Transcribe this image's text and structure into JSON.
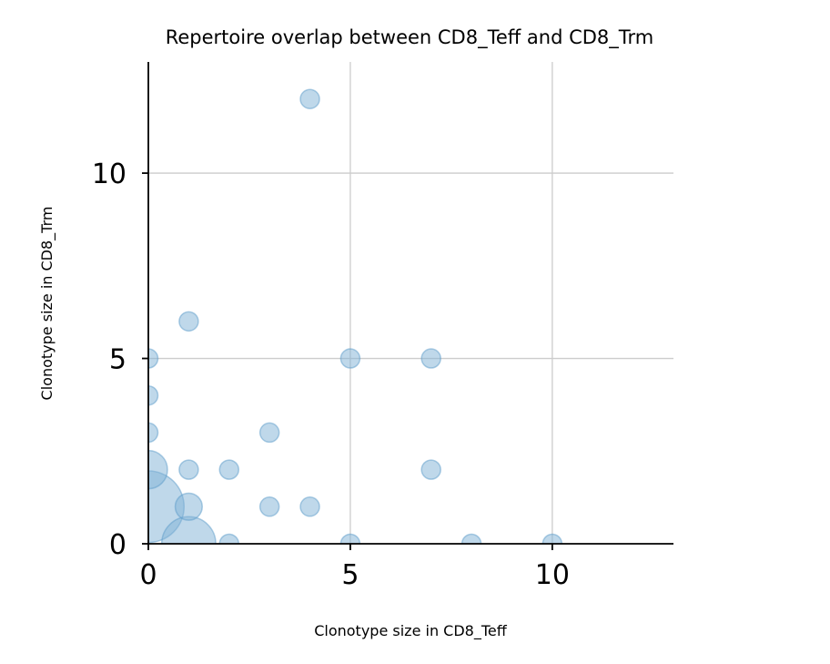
{
  "chart_data": {
    "type": "scatter",
    "title": "Repertoire overlap between CD8_Teff and CD8_Trm",
    "xlabel": "Clonotype size in CD8_Teff",
    "ylabel": "Clonotype size in CD8_Trm",
    "xlim": [
      0,
      13
    ],
    "ylim": [
      0,
      13
    ],
    "xticks": [
      0,
      5,
      10
    ],
    "yticks": [
      0,
      5,
      10
    ],
    "grid": true,
    "color": "#7fb1d6",
    "edge_color": "#5b9bc9",
    "alpha": 0.5,
    "points": [
      {
        "x": 0,
        "y": 1,
        "size": 14
      },
      {
        "x": 1,
        "y": 0,
        "size": 8
      },
      {
        "x": 0,
        "y": 2,
        "size": 4
      },
      {
        "x": 0,
        "y": 3,
        "size": 1
      },
      {
        "x": 0,
        "y": 4,
        "size": 1
      },
      {
        "x": 0,
        "y": 5,
        "size": 1
      },
      {
        "x": 1,
        "y": 1,
        "size": 2
      },
      {
        "x": 1,
        "y": 2,
        "size": 1
      },
      {
        "x": 1,
        "y": 6,
        "size": 1
      },
      {
        "x": 2,
        "y": 0,
        "size": 1
      },
      {
        "x": 2,
        "y": 2,
        "size": 1
      },
      {
        "x": 3,
        "y": 1,
        "size": 1
      },
      {
        "x": 3,
        "y": 3,
        "size": 1
      },
      {
        "x": 4,
        "y": 1,
        "size": 1
      },
      {
        "x": 4,
        "y": 12,
        "size": 1
      },
      {
        "x": 5,
        "y": 0,
        "size": 1
      },
      {
        "x": 5,
        "y": 5,
        "size": 1
      },
      {
        "x": 7,
        "y": 2,
        "size": 1
      },
      {
        "x": 7,
        "y": 5,
        "size": 1
      },
      {
        "x": 8,
        "y": 0,
        "size": 1
      },
      {
        "x": 10,
        "y": 0,
        "size": 1
      }
    ]
  }
}
